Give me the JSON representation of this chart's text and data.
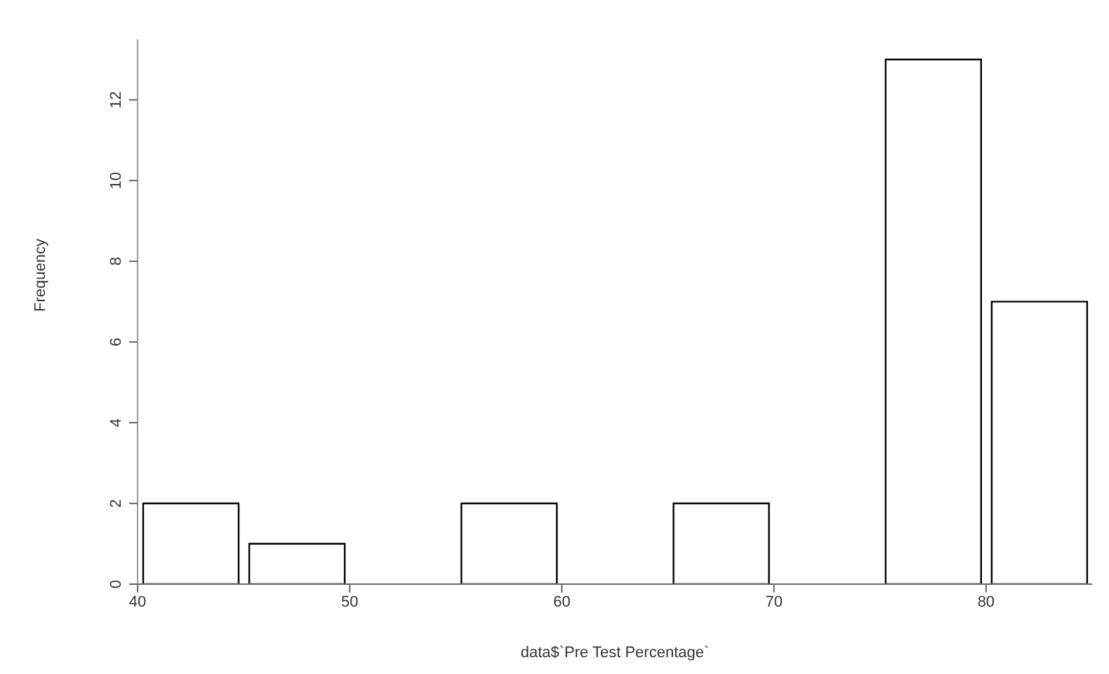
{
  "chart_data": {
    "type": "histogram",
    "xlabel": "data$`Pre Test Percentage`",
    "ylabel": "Frequency",
    "bins": [
      40,
      45,
      50,
      55,
      60,
      65,
      70,
      75,
      80,
      85
    ],
    "values": [
      2,
      1,
      0,
      2,
      0,
      2,
      0,
      13,
      7
    ],
    "color": "#ffffff",
    "xlim": [
      40,
      85
    ],
    "xticks": [
      40,
      50,
      60,
      70,
      80
    ],
    "ylim": [
      0,
      13.5
    ],
    "yticks": [
      0,
      2,
      4,
      6,
      8,
      10,
      12
    ],
    "grid": false
  }
}
